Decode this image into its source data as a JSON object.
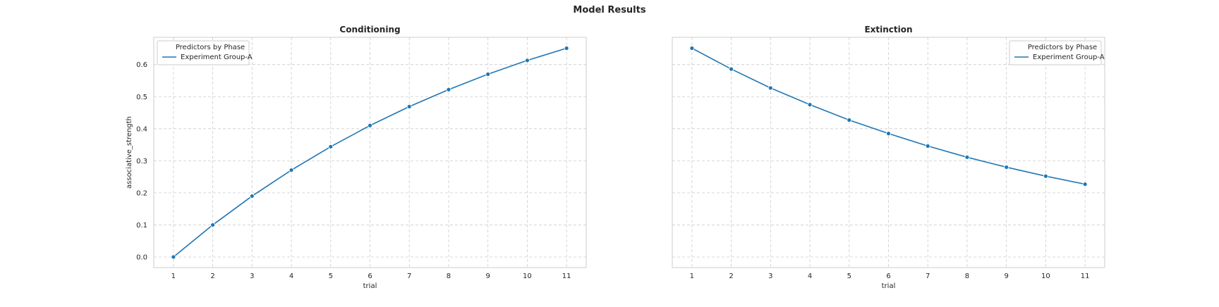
{
  "figure": {
    "suptitle": "Model Results"
  },
  "chart_data": [
    {
      "type": "line",
      "title": "Conditioning",
      "xlabel": "trial",
      "ylabel": "associative_strength",
      "x": [
        1,
        2,
        3,
        4,
        5,
        6,
        7,
        8,
        9,
        10,
        11
      ],
      "xticks": [
        "1",
        "2",
        "3",
        "4",
        "5",
        "6",
        "7",
        "8",
        "9",
        "10",
        "11"
      ],
      "yticks": [
        "0.0",
        "0.1",
        "0.2",
        "0.3",
        "0.4",
        "0.5",
        "0.6"
      ],
      "ylim": [
        -0.033,
        0.685
      ],
      "grid": true,
      "legend": {
        "title": "Predictors by Phase",
        "placement": "upper-left"
      },
      "series": [
        {
          "name": "Experiment Group-A",
          "color": "#1f77b4",
          "marker": "circle",
          "values": [
            0.0,
            0.1,
            0.19,
            0.271,
            0.344,
            0.41,
            0.469,
            0.522,
            0.57,
            0.613,
            0.651
          ]
        }
      ]
    },
    {
      "type": "line",
      "title": "Extinction",
      "xlabel": "trial",
      "ylabel": "",
      "x": [
        1,
        2,
        3,
        4,
        5,
        6,
        7,
        8,
        9,
        10,
        11
      ],
      "xticks": [
        "1",
        "2",
        "3",
        "4",
        "5",
        "6",
        "7",
        "8",
        "9",
        "10",
        "11"
      ],
      "yticks": [],
      "ylim": [
        -0.033,
        0.685
      ],
      "grid": true,
      "legend": {
        "title": "Predictors by Phase",
        "placement": "upper-right"
      },
      "series": [
        {
          "name": "Experiment Group-A",
          "color": "#1f77b4",
          "marker": "circle",
          "values": [
            0.651,
            0.586,
            0.527,
            0.475,
            0.427,
            0.385,
            0.346,
            0.311,
            0.28,
            0.252,
            0.227
          ]
        }
      ]
    }
  ]
}
